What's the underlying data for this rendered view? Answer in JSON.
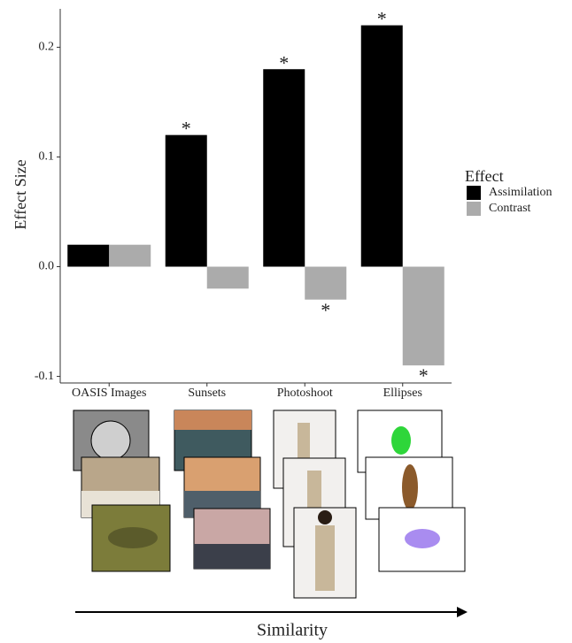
{
  "chart_data": {
    "type": "bar",
    "y_label": "Effect Size",
    "x_label": "Similarity",
    "categories": [
      "OASIS Images",
      "Sunsets",
      "Photoshoot",
      "Ellipses"
    ],
    "series": [
      {
        "name": "Assimilation",
        "color": "#000000",
        "values": [
          0.02,
          0.12,
          0.18,
          0.22
        ],
        "significant": [
          false,
          true,
          true,
          true
        ]
      },
      {
        "name": "Contrast",
        "color": "#ababab",
        "values": [
          0.02,
          -0.02,
          -0.03,
          -0.09
        ],
        "significant": [
          false,
          false,
          true,
          true
        ]
      }
    ],
    "significance_marker": "*",
    "legend_title": "Effect",
    "legend": "right",
    "ylim": [
      -0.106,
      0.235
    ],
    "yticks": [
      -0.1,
      {
        "value": 0,
        "label": "0.0"
      },
      0.1,
      0.2
    ],
    "grid": false
  }
}
